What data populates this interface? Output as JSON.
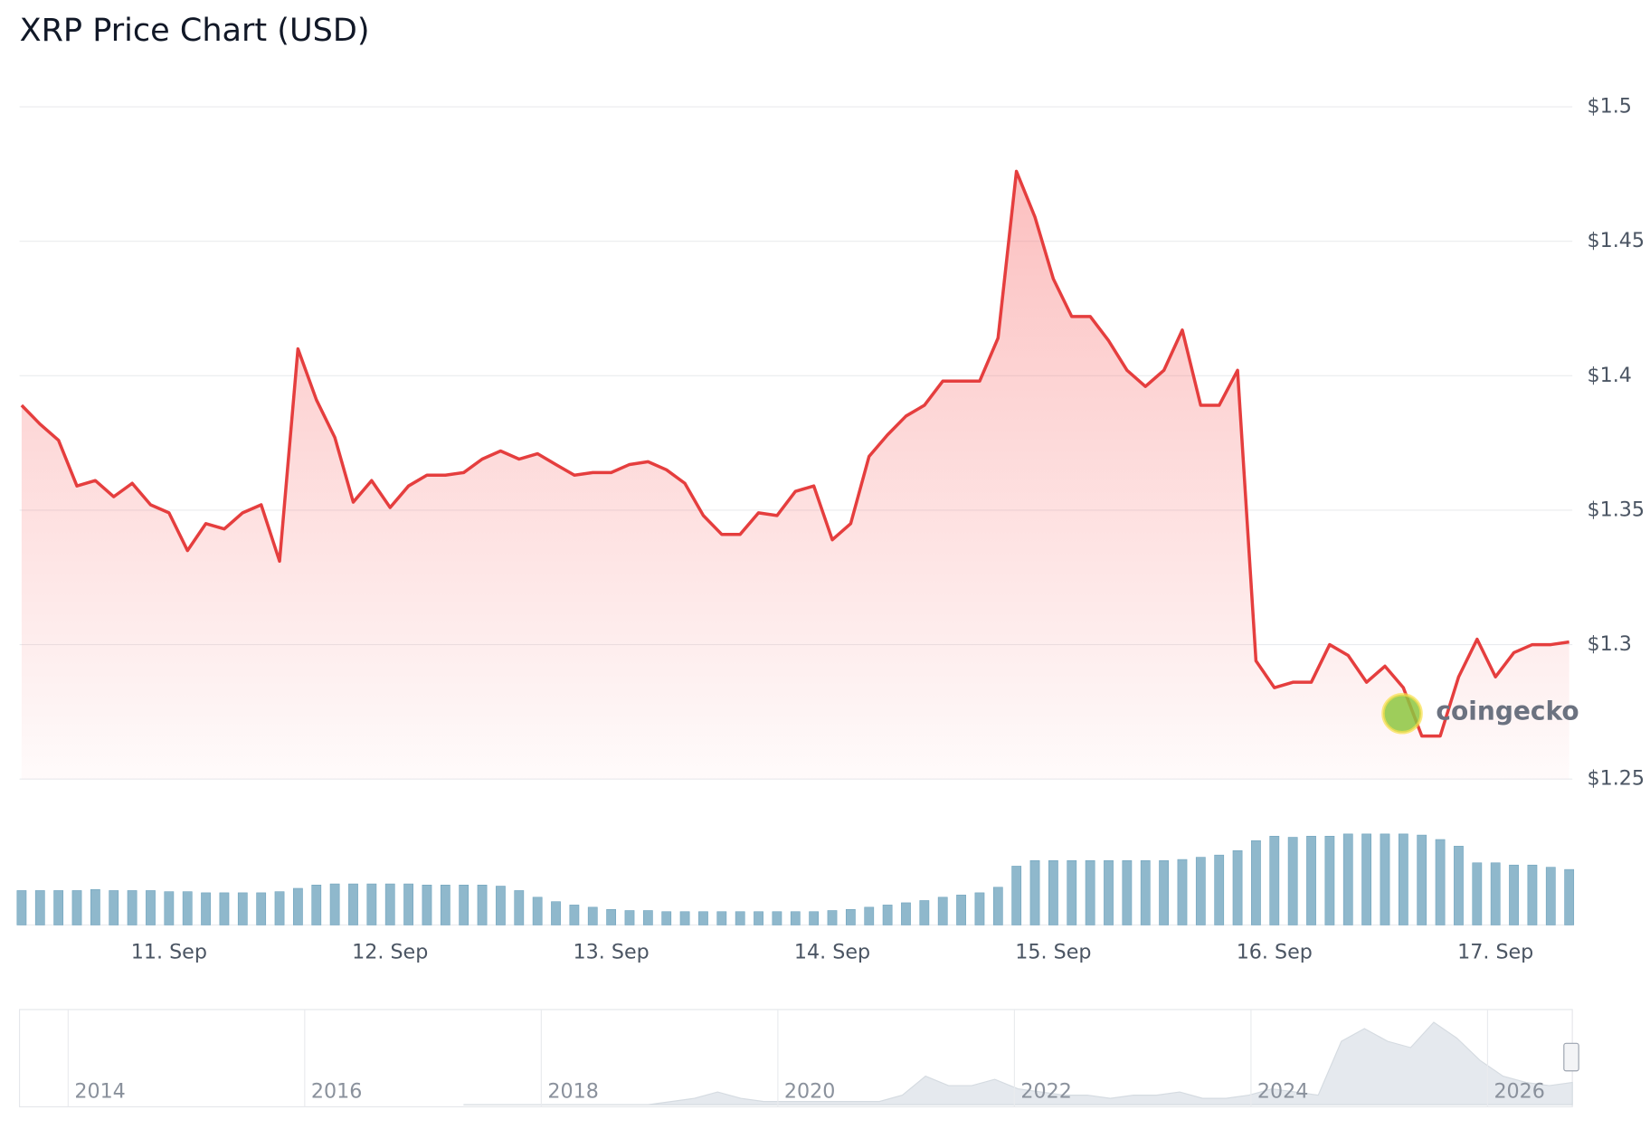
{
  "chart_data": {
    "type": "line",
    "title": "XRP Price Chart (USD)",
    "watermark": "coingecko",
    "categories": [
      null,
      null,
      null,
      null,
      null,
      null,
      null,
      null,
      "11. Sep",
      null,
      null,
      null,
      null,
      null,
      null,
      null,
      null,
      null,
      null,
      null,
      "12. Sep",
      null,
      null,
      null,
      null,
      null,
      null,
      null,
      null,
      null,
      null,
      null,
      "13. Sep",
      null,
      null,
      null,
      null,
      null,
      null,
      null,
      null,
      null,
      null,
      null,
      "14. Sep",
      null,
      null,
      null,
      null,
      null,
      null,
      null,
      null,
      null,
      null,
      null,
      "15. Sep",
      null,
      null,
      null,
      null,
      null,
      null,
      null,
      null,
      null,
      null,
      null,
      "16. Sep",
      null,
      null,
      null,
      null,
      null,
      null,
      null,
      null,
      null,
      null,
      null,
      "17. Sep",
      null,
      null,
      null,
      null
    ],
    "series": [
      {
        "name": "Price",
        "color": "#e53e3e",
        "values": [
          1.389,
          1.382,
          1.376,
          1.359,
          1.361,
          1.355,
          1.36,
          1.352,
          1.349,
          1.335,
          1.345,
          1.343,
          1.349,
          1.352,
          1.331,
          1.41,
          1.391,
          1.377,
          1.353,
          1.361,
          1.351,
          1.359,
          1.363,
          1.363,
          1.364,
          1.369,
          1.372,
          1.369,
          1.371,
          1.367,
          1.363,
          1.364,
          1.364,
          1.367,
          1.368,
          1.365,
          1.36,
          1.348,
          1.341,
          1.341,
          1.349,
          1.348,
          1.357,
          1.359,
          1.339,
          1.345,
          1.37,
          1.378,
          1.385,
          1.389,
          1.398,
          1.398,
          1.398,
          1.414,
          1.476,
          1.459,
          1.436,
          1.422,
          1.422,
          1.413,
          1.402,
          1.396,
          1.402,
          1.417,
          1.389,
          1.389,
          1.402,
          1.294,
          1.284,
          1.286,
          1.286,
          1.3,
          1.296,
          1.286,
          1.292,
          1.284,
          1.266,
          1.266,
          1.288,
          1.302,
          1.288,
          1.297,
          1.3,
          1.3,
          1.301
        ]
      },
      {
        "name": "Volume",
        "color": "#8fb8cc",
        "axis": "y2",
        "values": [
          31,
          31,
          31,
          31,
          32,
          31,
          31,
          31,
          30,
          30,
          29,
          29,
          29,
          29,
          30,
          33,
          36,
          37,
          37,
          37,
          37,
          37,
          36,
          36,
          36,
          36,
          35,
          31,
          25,
          21,
          18,
          16,
          14,
          13,
          13,
          12,
          12,
          12,
          12,
          12,
          12,
          12,
          12,
          12,
          13,
          14,
          16,
          18,
          20,
          22,
          25,
          27,
          29,
          34,
          53,
          58,
          58,
          58,
          58,
          58,
          58,
          58,
          58,
          59,
          61,
          63,
          67,
          76,
          80,
          79,
          80,
          80,
          82,
          82,
          82,
          82,
          81,
          77,
          71,
          56,
          56,
          54,
          54,
          52,
          50
        ]
      }
    ],
    "ylim": [
      1.25,
      1.5
    ],
    "yticks": [
      {
        "value": 1.25,
        "label": "$1.25"
      },
      {
        "value": 1.3,
        "label": "$1.3"
      },
      {
        "value": 1.35,
        "label": "$1.35"
      },
      {
        "value": 1.4,
        "label": "$1.4"
      },
      {
        "value": 1.45,
        "label": "$1.45"
      },
      {
        "value": 1.5,
        "label": "$1.5"
      }
    ],
    "y2lim": [
      0,
      100
    ],
    "grid": true,
    "navigator": {
      "labels": [
        "2014",
        "2016",
        "2018",
        "2020",
        "2022",
        "2024",
        "2026"
      ],
      "values": [
        0,
        0,
        0,
        0,
        0,
        0,
        0,
        0,
        0,
        1,
        2,
        4,
        2,
        1,
        1,
        1,
        1,
        1,
        1,
        3,
        9,
        6,
        6,
        8,
        5,
        4,
        3,
        3,
        2,
        3,
        3,
        4,
        2,
        2,
        3,
        5,
        4,
        3,
        20,
        24,
        20,
        18,
        26,
        21,
        14,
        9,
        7,
        6,
        7
      ]
    }
  }
}
